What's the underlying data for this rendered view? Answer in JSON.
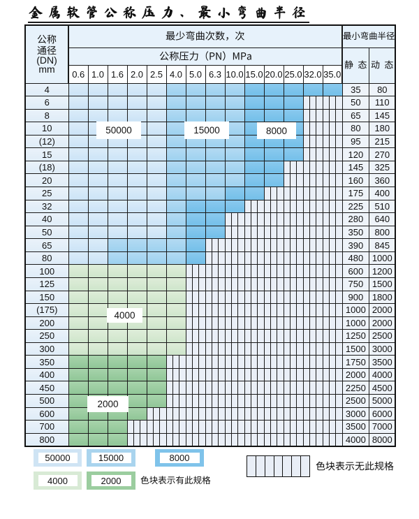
{
  "title": "金属软管公称压力、最小弯曲半径",
  "header": {
    "dn_lines": [
      "公称",
      "通径",
      "(DN)",
      "mm"
    ],
    "cycles_title": "最少弯曲次数，次",
    "pn_title": "公称压力（PN）MPa",
    "pressures": [
      "0.6",
      "1.0",
      "1.6",
      "2.0",
      "2.5",
      "4.0",
      "5.0",
      "6.3",
      "10.0",
      "15.0",
      "20.0",
      "25.0",
      "32.0",
      "35.0"
    ],
    "radius_title": "最小弯曲半径",
    "static_label": "静 态",
    "dynamic_label": "动 态"
  },
  "pattern_key": {
    "L": "50000",
    "M": "15000",
    "D": "8000",
    "G": "4000",
    "H": "2000",
    "X": "no-spec"
  },
  "rows": [
    {
      "dn": "4",
      "pattern": "LLLLLMMMMDDDDD",
      "static": "35",
      "dynamic": "80"
    },
    {
      "dn": "6",
      "pattern": "LLLLLMMMMDDDXX",
      "static": "50",
      "dynamic": "110"
    },
    {
      "dn": "8",
      "pattern": "LLLLLMMMMDDDXX",
      "static": "65",
      "dynamic": "145"
    },
    {
      "dn": "10",
      "pattern": "LLLLLMMMMDDDXX",
      "static": "80",
      "dynamic": "180"
    },
    {
      "dn": "(12)",
      "pattern": "LLLLLMMMMDDDXX",
      "static": "95",
      "dynamic": "215"
    },
    {
      "dn": "15",
      "pattern": "LLLLLMMMMDDDXX",
      "static": "120",
      "dynamic": "270"
    },
    {
      "dn": "(18)",
      "pattern": "LLLLLMMMMDDXXX",
      "static": "145",
      "dynamic": "325"
    },
    {
      "dn": "20",
      "pattern": "LLLLLMMMMDDXXX",
      "static": "160",
      "dynamic": "360"
    },
    {
      "dn": "25",
      "pattern": "LLLLLMMMDDXXXX",
      "static": "175",
      "dynamic": "400"
    },
    {
      "dn": "32",
      "pattern": "LLLLLMDDDXXXXX",
      "static": "225",
      "dynamic": "510"
    },
    {
      "dn": "40",
      "pattern": "LLLLLMDDXXXXXX",
      "static": "280",
      "dynamic": "640"
    },
    {
      "dn": "50",
      "pattern": "LLLLLMDDXXXXXX",
      "static": "350",
      "dynamic": "800"
    },
    {
      "dn": "65",
      "pattern": "LLMMMMDXXXXXXX",
      "static": "390",
      "dynamic": "845"
    },
    {
      "dn": "80",
      "pattern": "LLMMMMDXXXXXXX",
      "static": "480",
      "dynamic": "1000"
    },
    {
      "dn": "100",
      "pattern": "GGGGGGXXXXXXXX",
      "static": "600",
      "dynamic": "1200"
    },
    {
      "dn": "125",
      "pattern": "GGGGGGXXXXXXXX",
      "static": "750",
      "dynamic": "1500"
    },
    {
      "dn": "150",
      "pattern": "GGGGGGXXXXXXXX",
      "static": "900",
      "dynamic": "1800"
    },
    {
      "dn": "(175)",
      "pattern": "GGGGGGXXXXXXXX",
      "static": "1000",
      "dynamic": "2000"
    },
    {
      "dn": "200",
      "pattern": "GGGGGGXXXXXXXX",
      "static": "1000",
      "dynamic": "2000"
    },
    {
      "dn": "250",
      "pattern": "GGGGGGXXXXXXXX",
      "static": "1250",
      "dynamic": "2500"
    },
    {
      "dn": "300",
      "pattern": "GGGGGGXXXXXXXX",
      "static": "1500",
      "dynamic": "3000"
    },
    {
      "dn": "350",
      "pattern": "HHHHHXXXXXXXXX",
      "static": "1750",
      "dynamic": "3500"
    },
    {
      "dn": "400",
      "pattern": "HHHHHXXXXXXXXX",
      "static": "2000",
      "dynamic": "4000"
    },
    {
      "dn": "450",
      "pattern": "HHHHHXXXXXXXXX",
      "static": "2250",
      "dynamic": "4500"
    },
    {
      "dn": "500",
      "pattern": "HHHHHXXXXXXXXX",
      "static": "2500",
      "dynamic": "5000"
    },
    {
      "dn": "600",
      "pattern": "HHHHXXXXXXXXXX",
      "static": "3000",
      "dynamic": "6000"
    },
    {
      "dn": "700",
      "pattern": "HHHXXXXXXXXXXX",
      "static": "3500",
      "dynamic": "7000"
    },
    {
      "dn": "800",
      "pattern": "HHHXXXXXXXXXXX",
      "static": "4000",
      "dynamic": "8000"
    }
  ],
  "overlays": [
    {
      "text": "50000"
    },
    {
      "text": "15000"
    },
    {
      "text": "8000"
    },
    {
      "text": "4000"
    },
    {
      "text": "2000"
    }
  ],
  "legend": {
    "items": [
      {
        "label": "50000",
        "color": "#cfe4f4"
      },
      {
        "label": "15000",
        "color": "#a9d4ee"
      },
      {
        "label": "8000",
        "color": "#7fc3ea"
      },
      {
        "label": "4000",
        "color": "#d8ead5"
      },
      {
        "label": "2000",
        "color": "#9bcd9f"
      }
    ],
    "has_spec_note": "色块表示有此规格",
    "no_spec_note": "色块表示无此规格"
  }
}
